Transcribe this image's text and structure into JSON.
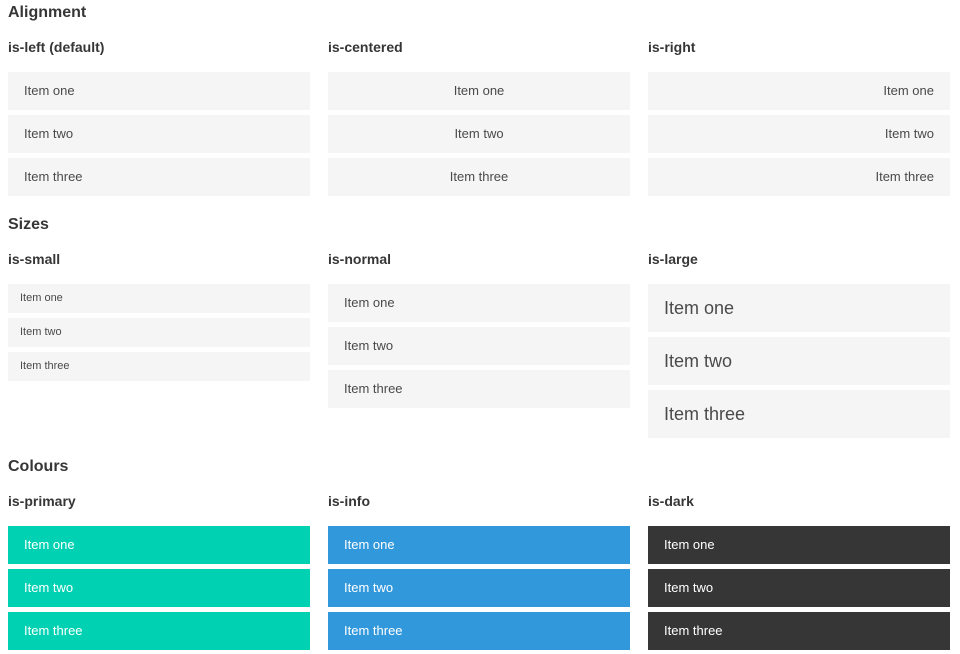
{
  "colors": {
    "primary": "#00d1b2",
    "info": "#3298dc",
    "dark": "#363636",
    "item_bg": "#f5f5f5",
    "item_text": "#4a4a4a",
    "heading": "#363636"
  },
  "sections": [
    {
      "title": "Alignment",
      "columns": [
        {
          "label": "is-left (default)",
          "items": [
            "Item one",
            "Item two",
            "Item three"
          ]
        },
        {
          "label": "is-centered",
          "items": [
            "Item one",
            "Item two",
            "Item three"
          ]
        },
        {
          "label": "is-right",
          "items": [
            "Item one",
            "Item two",
            "Item three"
          ]
        }
      ]
    },
    {
      "title": "Sizes",
      "columns": [
        {
          "label": "is-small",
          "items": [
            "Item one",
            "Item two",
            "Item three"
          ]
        },
        {
          "label": "is-normal",
          "items": [
            "Item one",
            "Item two",
            "Item three"
          ]
        },
        {
          "label": "is-large",
          "items": [
            "Item one",
            "Item two",
            "Item three"
          ]
        }
      ]
    },
    {
      "title": "Colours",
      "columns": [
        {
          "label": "is-primary",
          "items": [
            "Item one",
            "Item two",
            "Item three"
          ]
        },
        {
          "label": "is-info",
          "items": [
            "Item one",
            "Item two",
            "Item three"
          ]
        },
        {
          "label": "is-dark",
          "items": [
            "Item one",
            "Item two",
            "Item three"
          ]
        }
      ]
    }
  ]
}
